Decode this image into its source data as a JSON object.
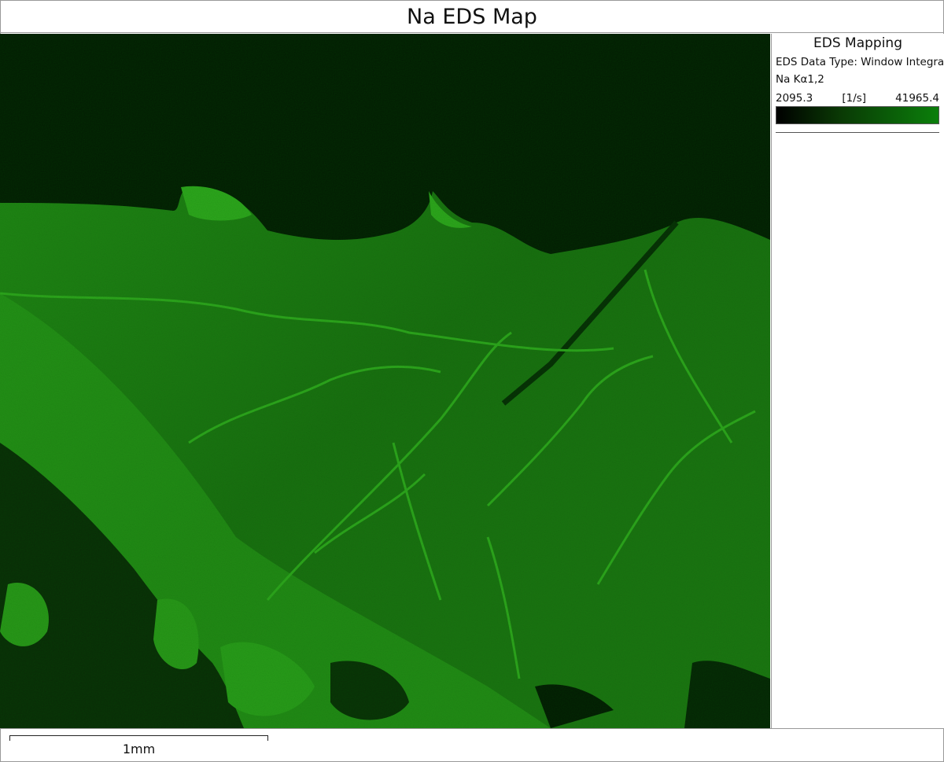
{
  "title": "Na EDS Map",
  "legend": {
    "heading": "EDS Mapping",
    "data_type": "EDS Data Type: Window Integral",
    "element_line": "Na Kα1,2",
    "min": "2095.3",
    "unit": "[1/s]",
    "max": "41965.4",
    "colormap": [
      "#000000",
      "#0b7f0b"
    ]
  },
  "scale_bar": {
    "label": "1mm"
  },
  "colors": {
    "background_map": "#196b10",
    "dark": "#041804",
    "bright": "#2a9a1a"
  }
}
